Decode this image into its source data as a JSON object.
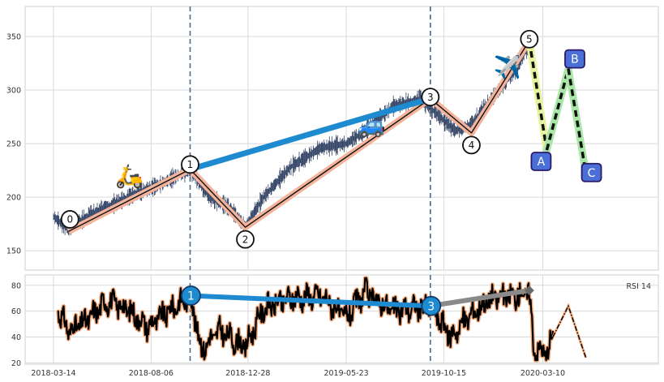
{
  "chart_data": [
    {
      "type": "line",
      "title": "",
      "xlabel": "",
      "ylabel": "",
      "x_range": [
        "2018-03-14",
        "2020-07-20"
      ],
      "ylim": [
        132,
        378
      ],
      "y_ticks": [
        150,
        200,
        250,
        300,
        350
      ],
      "grid": true,
      "price_seed": [
        {
          "x": "2018-03-14",
          "y": 182
        },
        {
          "x": "2018-04-01",
          "y": 172
        },
        {
          "x": "2018-04-20",
          "y": 177
        },
        {
          "x": "2018-05-20",
          "y": 188
        },
        {
          "x": "2018-06-20",
          "y": 196
        },
        {
          "x": "2018-07-20",
          "y": 205
        },
        {
          "x": "2018-08-20",
          "y": 212
        },
        {
          "x": "2018-09-20",
          "y": 222
        },
        {
          "x": "2018-10-03",
          "y": 226
        },
        {
          "x": "2018-11-01",
          "y": 200
        },
        {
          "x": "2018-12-01",
          "y": 190
        },
        {
          "x": "2018-12-24",
          "y": 172
        },
        {
          "x": "2019-01-20",
          "y": 200
        },
        {
          "x": "2019-03-01",
          "y": 228
        },
        {
          "x": "2019-04-15",
          "y": 246
        },
        {
          "x": "2019-05-23",
          "y": 250
        },
        {
          "x": "2019-06-20",
          "y": 262
        },
        {
          "x": "2019-08-01",
          "y": 285
        },
        {
          "x": "2019-09-10",
          "y": 292
        },
        {
          "x": "2019-10-01",
          "y": 280
        },
        {
          "x": "2019-11-01",
          "y": 262
        },
        {
          "x": "2019-11-25",
          "y": 268
        },
        {
          "x": "2019-12-25",
          "y": 292
        },
        {
          "x": "2020-02-01",
          "y": 320
        },
        {
          "x": "2020-02-20",
          "y": 345
        }
      ],
      "waves": {
        "labels": [
          "0",
          "1",
          "2",
          "3",
          "4",
          "5"
        ],
        "points": [
          {
            "x": "2018-04-05",
            "y": 168
          },
          {
            "x": "2018-10-03",
            "y": 226
          },
          {
            "x": "2018-12-24",
            "y": 172
          },
          {
            "x": "2019-09-25",
            "y": 292
          },
          {
            "x": "2019-11-25",
            "y": 260
          },
          {
            "x": "2020-02-19",
            "y": 346
          }
        ]
      },
      "corrective": {
        "labels": [
          "A",
          "B",
          "C"
        ],
        "points": [
          {
            "x": "2020-02-19",
            "y": 346
          },
          {
            "x": "2020-03-16",
            "y": 244
          },
          {
            "x": "2020-04-17",
            "y": 320
          },
          {
            "x": "2020-05-13",
            "y": 223
          }
        ]
      },
      "trend_line": [
        {
          "x": "2018-10-03",
          "y": 226
        },
        {
          "x": "2019-09-25",
          "y": 292
        }
      ],
      "vlines": [
        "2018-10-03",
        "2019-09-25"
      ],
      "annotations": [
        {
          "icon": "scooter-icon",
          "glyph": "🛵",
          "x": "2018-07-05",
          "y": 220
        },
        {
          "icon": "car-icon",
          "glyph": "🚙",
          "x": "2019-06-30",
          "y": 268
        },
        {
          "icon": "airplane-icon",
          "glyph": "✈️",
          "x": "2020-01-18",
          "y": 322
        }
      ]
    },
    {
      "type": "line",
      "title": "",
      "legend": "RSI 14",
      "ylim": [
        19,
        88
      ],
      "y_ticks": [
        20,
        40,
        60,
        80
      ],
      "x_ticks": [
        "2018-03-14",
        "2018-08-06",
        "2018-12-28",
        "2019-05-23",
        "2019-10-15",
        "2020-03-10"
      ],
      "rsi_seed": [
        {
          "x": "2018-03-20",
          "y": 62
        },
        {
          "x": "2018-04-05",
          "y": 45
        },
        {
          "x": "2018-05-01",
          "y": 52
        },
        {
          "x": "2018-06-01",
          "y": 68
        },
        {
          "x": "2018-07-01",
          "y": 62
        },
        {
          "x": "2018-08-01",
          "y": 48
        },
        {
          "x": "2018-09-01",
          "y": 60
        },
        {
          "x": "2018-10-03",
          "y": 72
        },
        {
          "x": "2018-10-20",
          "y": 30
        },
        {
          "x": "2018-11-15",
          "y": 45
        },
        {
          "x": "2018-12-24",
          "y": 32
        },
        {
          "x": "2019-01-20",
          "y": 62
        },
        {
          "x": "2019-03-01",
          "y": 70
        },
        {
          "x": "2019-04-15",
          "y": 72
        },
        {
          "x": "2019-05-23",
          "y": 55
        },
        {
          "x": "2019-06-20",
          "y": 75
        },
        {
          "x": "2019-08-01",
          "y": 60
        },
        {
          "x": "2019-09-25",
          "y": 64
        },
        {
          "x": "2019-10-25",
          "y": 40
        },
        {
          "x": "2019-11-25",
          "y": 58
        },
        {
          "x": "2019-12-25",
          "y": 70
        },
        {
          "x": "2020-02-01",
          "y": 72
        },
        {
          "x": "2020-02-19",
          "y": 75
        },
        {
          "x": "2020-02-26",
          "y": 30
        },
        {
          "x": "2020-03-16",
          "y": 28
        },
        {
          "x": "2020-03-25",
          "y": 40
        }
      ],
      "rsi_projection": [
        {
          "x": "2020-03-25",
          "y": 40
        },
        {
          "x": "2020-04-17",
          "y": 64
        },
        {
          "x": "2020-05-13",
          "y": 24
        }
      ],
      "divergence_blue": {
        "labels": [
          "1",
          "3"
        ],
        "points": [
          {
            "x": "2018-10-03",
            "y": 72
          },
          {
            "x": "2019-09-25",
            "y": 64
          }
        ]
      },
      "divergence_gray": [
        {
          "x": "2019-09-25",
          "y": 64
        },
        {
          "x": "2020-02-19",
          "y": 76
        }
      ]
    }
  ]
}
